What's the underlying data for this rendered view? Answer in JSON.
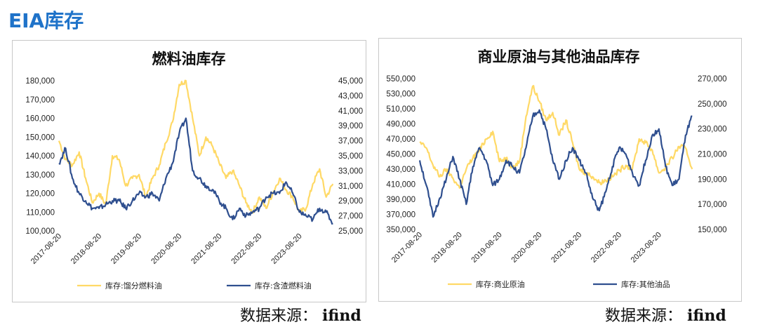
{
  "header": {
    "title": "EIA库存"
  },
  "sources": {
    "left": {
      "label": "数据来源：",
      "name": "ifind"
    },
    "right": {
      "label": "数据来源：",
      "name": "ifind"
    }
  },
  "chart_data": [
    {
      "type": "line",
      "title": "燃料油库存",
      "x_ticks": [
        "2017-08-20",
        "2018-08-20",
        "2019-08-20",
        "2020-08-20",
        "2021-08-20",
        "2022-08-20",
        "2023-08-20"
      ],
      "x_range": [
        "2017-08-20",
        "2024-07-01"
      ],
      "ylim_left": [
        100000,
        180000
      ],
      "ylim_right": [
        25000,
        45000
      ],
      "y_ticks_left": [
        "100,000",
        "110,000",
        "120,000",
        "130,000",
        "140,000",
        "150,000",
        "160,000",
        "170,000",
        "180,000"
      ],
      "y_ticks_right": [
        "25,000",
        "27,000",
        "29,000",
        "31,000",
        "33,000",
        "35,000",
        "37,000",
        "39,000",
        "41,000",
        "43,000",
        "45,000"
      ],
      "legend": "bottom",
      "series": [
        {
          "name": "库存:馏分燃料油",
          "axis": "left",
          "color": "#ffd966",
          "x": [
            "2017-08-20",
            "2017-10-20",
            "2017-12-20",
            "2018-02-20",
            "2018-04-20",
            "2018-06-20",
            "2018-08-20",
            "2018-10-20",
            "2018-12-20",
            "2019-02-20",
            "2019-04-20",
            "2019-06-20",
            "2019-08-20",
            "2019-10-20",
            "2019-12-20",
            "2020-02-20",
            "2020-04-20",
            "2020-06-20",
            "2020-08-20",
            "2020-10-20",
            "2020-12-20",
            "2021-02-20",
            "2021-04-20",
            "2021-06-20",
            "2021-08-20",
            "2021-10-20",
            "2021-12-20",
            "2022-02-20",
            "2022-04-20",
            "2022-06-20",
            "2022-08-20",
            "2022-10-20",
            "2022-12-20",
            "2023-02-20",
            "2023-04-20",
            "2023-06-20",
            "2023-08-20",
            "2023-10-20",
            "2023-12-20",
            "2024-02-20",
            "2024-04-20",
            "2024-06-20"
          ],
          "y": [
            148000,
            138000,
            135000,
            142000,
            128000,
            115000,
            120000,
            114000,
            140000,
            138000,
            124000,
            128000,
            130000,
            118000,
            128000,
            135000,
            147000,
            158000,
            178000,
            180000,
            160000,
            140000,
            150000,
            145000,
            136000,
            128000,
            132000,
            124000,
            115000,
            110000,
            118000,
            112000,
            120000,
            128000,
            122000,
            118000,
            110000,
            112000,
            125000,
            133000,
            118000,
            125000
          ]
        },
        {
          "name": "库存:含渣燃料油",
          "axis": "right",
          "color": "#2f4f8f",
          "x": [
            "2017-08-20",
            "2017-10-20",
            "2017-12-20",
            "2018-02-20",
            "2018-04-20",
            "2018-06-20",
            "2018-08-20",
            "2018-10-20",
            "2018-12-20",
            "2019-02-20",
            "2019-04-20",
            "2019-06-20",
            "2019-08-20",
            "2019-10-20",
            "2019-12-20",
            "2020-02-20",
            "2020-04-20",
            "2020-06-20",
            "2020-08-20",
            "2020-10-20",
            "2020-12-20",
            "2021-02-20",
            "2021-04-20",
            "2021-06-20",
            "2021-08-20",
            "2021-10-20",
            "2021-12-20",
            "2022-02-20",
            "2022-04-20",
            "2022-06-20",
            "2022-08-20",
            "2022-10-20",
            "2022-12-20",
            "2023-02-20",
            "2023-04-20",
            "2023-06-20",
            "2023-08-20",
            "2023-10-20",
            "2023-12-20",
            "2024-02-20",
            "2024-04-20",
            "2024-06-20"
          ],
          "y": [
            34000,
            36000,
            32000,
            30000,
            29000,
            28000,
            28000,
            28500,
            29000,
            29000,
            28000,
            29000,
            30000,
            29500,
            30000,
            29000,
            32000,
            34000,
            38000,
            40000,
            33000,
            32000,
            31000,
            30500,
            29000,
            28000,
            26500,
            28000,
            27000,
            27500,
            28000,
            29500,
            30000,
            30000,
            31500,
            30000,
            27500,
            27000,
            26500,
            28000,
            27500,
            26000
          ]
        }
      ]
    },
    {
      "type": "line",
      "title": "商业原油与其他油品库存",
      "x_ticks": [
        "2017-08-20",
        "2018-08-20",
        "2019-08-20",
        "2020-08-20",
        "2021-08-20",
        "2022-08-20",
        "2023-08-20"
      ],
      "x_range": [
        "2017-08-20",
        "2024-07-01"
      ],
      "ylim_left": [
        350000,
        550000
      ],
      "ylim_right": [
        150000,
        270000
      ],
      "y_ticks_left": [
        "350,000",
        "370,000",
        "390,000",
        "410,000",
        "430,000",
        "450,000",
        "470,000",
        "490,000",
        "510,000",
        "530,000",
        "550,000"
      ],
      "y_ticks_right": [
        "150,000",
        "170,000",
        "190,000",
        "210,000",
        "230,000",
        "250,000",
        "270,000"
      ],
      "legend": "bottom",
      "series": [
        {
          "name": "库存:商业原油",
          "axis": "left",
          "color": "#ffd966",
          "x": [
            "2017-08-20",
            "2017-10-20",
            "2017-12-20",
            "2018-02-20",
            "2018-04-20",
            "2018-06-20",
            "2018-08-20",
            "2018-10-20",
            "2018-12-20",
            "2019-02-20",
            "2019-04-20",
            "2019-06-20",
            "2019-08-20",
            "2019-10-20",
            "2019-12-20",
            "2020-02-20",
            "2020-04-20",
            "2020-06-20",
            "2020-08-20",
            "2020-10-20",
            "2020-12-20",
            "2021-02-20",
            "2021-04-20",
            "2021-06-20",
            "2021-08-20",
            "2021-10-20",
            "2021-12-20",
            "2022-02-20",
            "2022-04-20",
            "2022-06-20",
            "2022-08-20",
            "2022-10-20",
            "2022-12-20",
            "2023-02-20",
            "2023-04-20",
            "2023-06-20",
            "2023-08-20",
            "2023-10-20",
            "2023-12-20",
            "2024-02-20",
            "2024-04-20",
            "2024-06-20"
          ],
          "y": [
            465000,
            458000,
            435000,
            420000,
            430000,
            418000,
            405000,
            430000,
            445000,
            455000,
            470000,
            480000,
            440000,
            445000,
            432000,
            440000,
            500000,
            540000,
            520000,
            495000,
            505000,
            475000,
            495000,
            465000,
            430000,
            425000,
            420000,
            412000,
            415000,
            420000,
            428000,
            435000,
            430000,
            470000,
            465000,
            455000,
            425000,
            432000,
            445000,
            460000,
            458000,
            430000
          ]
        },
        {
          "name": "库存:其他油品",
          "axis": "right",
          "color": "#2f4f8f",
          "x": [
            "2017-08-20",
            "2017-10-20",
            "2017-12-20",
            "2018-02-20",
            "2018-04-20",
            "2018-06-20",
            "2018-08-20",
            "2018-10-20",
            "2018-12-20",
            "2019-02-20",
            "2019-04-20",
            "2019-06-20",
            "2019-08-20",
            "2019-10-20",
            "2019-12-20",
            "2020-02-20",
            "2020-04-20",
            "2020-06-20",
            "2020-08-20",
            "2020-10-20",
            "2020-12-20",
            "2021-02-20",
            "2021-04-20",
            "2021-06-20",
            "2021-08-20",
            "2021-10-20",
            "2021-12-20",
            "2022-02-20",
            "2022-04-20",
            "2022-06-20",
            "2022-08-20",
            "2022-10-20",
            "2022-12-20",
            "2023-02-20",
            "2023-04-20",
            "2023-06-20",
            "2023-08-20",
            "2023-10-20",
            "2023-12-20",
            "2024-02-20",
            "2024-04-20",
            "2024-06-20"
          ],
          "y": [
            205000,
            185000,
            160000,
            175000,
            190000,
            208000,
            190000,
            170000,
            200000,
            215000,
            205000,
            185000,
            190000,
            205000,
            200000,
            195000,
            215000,
            240000,
            245000,
            230000,
            205000,
            190000,
            205000,
            215000,
            205000,
            195000,
            175000,
            165000,
            180000,
            200000,
            215000,
            210000,
            195000,
            185000,
            205000,
            225000,
            230000,
            200000,
            185000,
            190000,
            225000,
            240000
          ]
        }
      ]
    }
  ]
}
